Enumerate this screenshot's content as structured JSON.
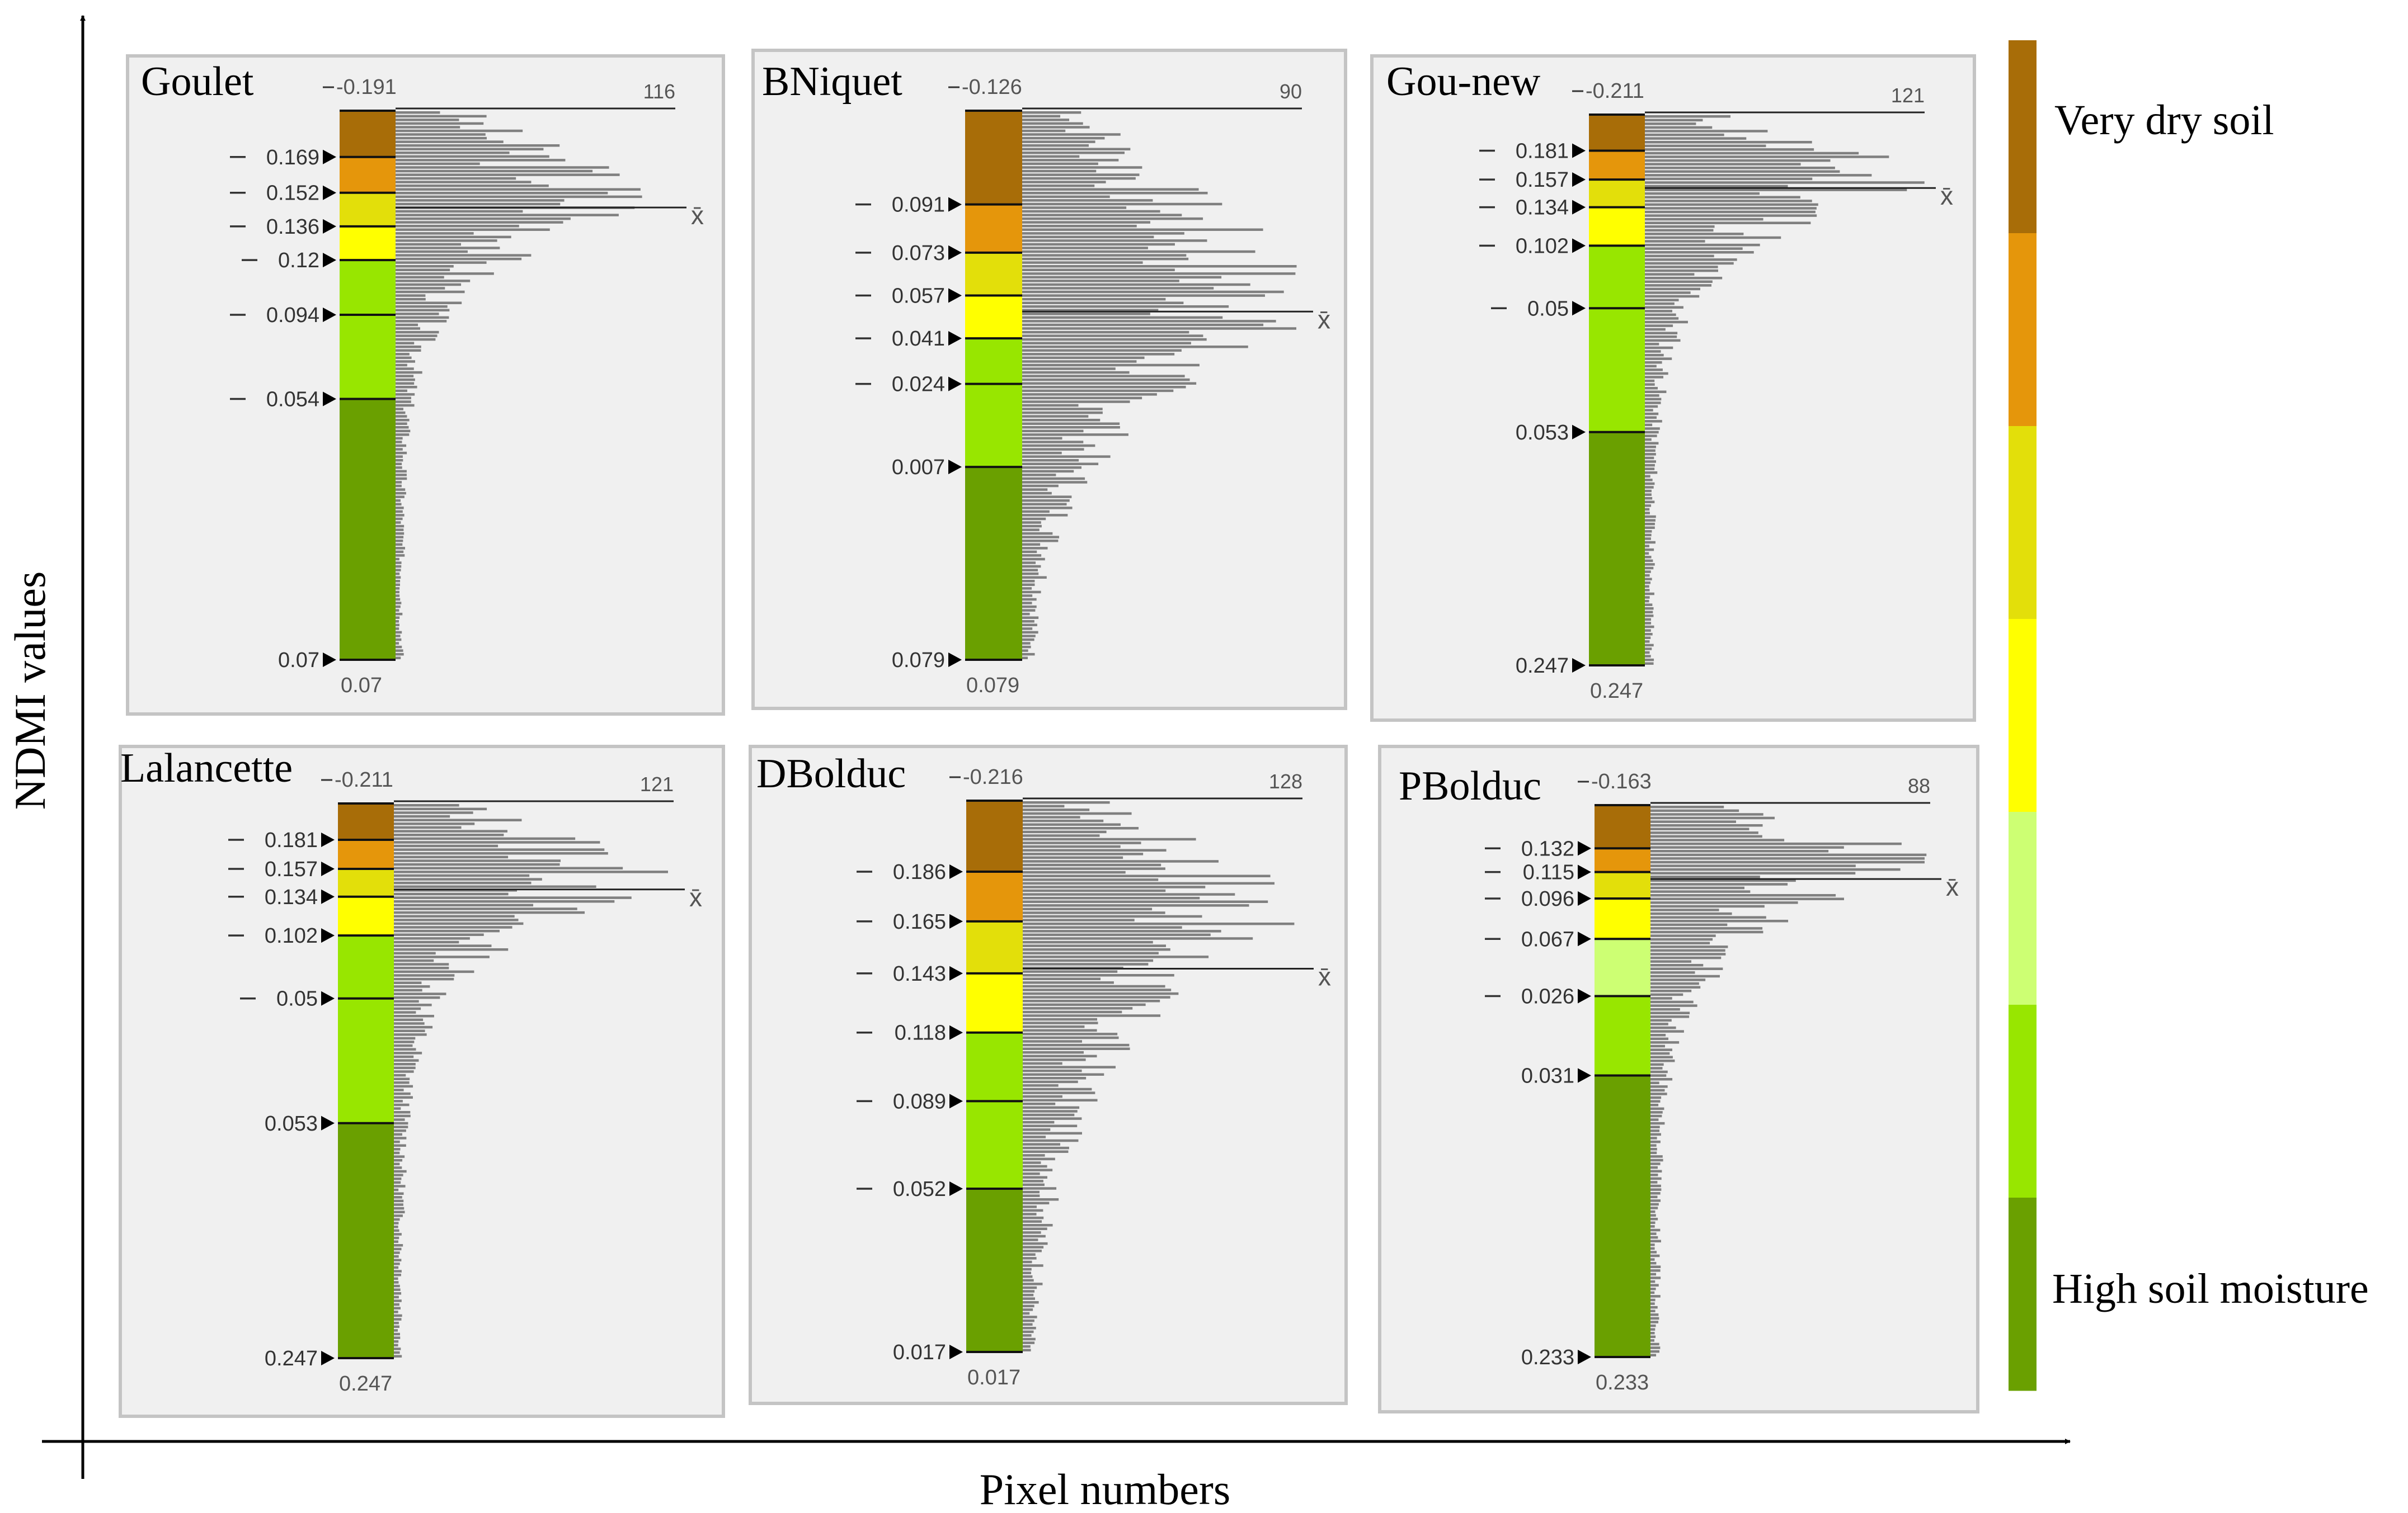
{
  "figure": {
    "ylabel": "NDMI values",
    "xlabel": "Pixel numbers",
    "legend_top_label": "Very dry soil",
    "legend_bottom_label": "High soil moisture",
    "mean_marker": "x̄"
  },
  "legend_colors": [
    "#a86d08",
    "#e5960b",
    "#e3df0a",
    "#ffff00",
    "#cdff73",
    "#98e600",
    "#6aa000"
  ],
  "chart_data": [
    {
      "type": "histogram",
      "title": "Goulet",
      "top_label": "-0.191",
      "bottom_label": "0.07",
      "bottom_value_label": "0.07",
      "max_count_label": "116",
      "break_labels": [
        "-0.169",
        "-0.152",
        "-0.136",
        "-0.12",
        "-0.094",
        "-0.054"
      ],
      "range": [
        -0.191,
        0.07
      ],
      "breaks": [
        -0.169,
        -0.152,
        -0.136,
        -0.12,
        -0.094,
        -0.054
      ],
      "colors": [
        "#a86d08",
        "#e5960b",
        "#e3df0a",
        "#ffff00",
        "#98e600",
        "#98e600",
        "#6aa000"
      ],
      "max_count": 116,
      "mean": -0.145,
      "peak": -0.143,
      "peak_count": 100,
      "shape": "skewed",
      "seed": 3
    },
    {
      "type": "histogram",
      "title": "BNiquet",
      "top_label": "-0.126",
      "bottom_label": "0.079",
      "bottom_value_label": "0.079",
      "max_count_label": "90",
      "break_labels": [
        "-0.091",
        "-0.073",
        "-0.057",
        "-0.041",
        "-0.024",
        "0.007"
      ],
      "range": [
        -0.126,
        0.079
      ],
      "breaks": [
        -0.091,
        -0.073,
        -0.057,
        -0.041,
        -0.024,
        0.007
      ],
      "colors": [
        "#a86d08",
        "#e5960b",
        "#e3df0a",
        "#ffff00",
        "#98e600",
        "#98e600",
        "#6aa000"
      ],
      "max_count": 90,
      "mean": -0.051,
      "peak": -0.047,
      "peak_count": 85,
      "shape": "wide",
      "seed": 7
    },
    {
      "type": "histogram",
      "title": "Gou-new",
      "top_label": "-0.211",
      "bottom_label": "0.247",
      "bottom_value_label": "0.247",
      "max_count_label": "121",
      "break_labels": [
        "-0.181",
        "-0.157",
        "-0.134",
        "-0.102",
        "-0.05",
        "0.053"
      ],
      "range": [
        -0.211,
        0.247
      ],
      "breaks": [
        -0.181,
        -0.157,
        -0.134,
        -0.102,
        -0.05,
        0.053
      ],
      "colors": [
        "#a86d08",
        "#e5960b",
        "#e3df0a",
        "#ffff00",
        "#98e600",
        "#98e600",
        "#6aa000"
      ],
      "max_count": 121,
      "mean": -0.15,
      "peak": -0.15,
      "peak_count": 115,
      "shape": "skewed",
      "seed": 11
    },
    {
      "type": "histogram",
      "title": "Lalancette",
      "top_label": "-0.211",
      "bottom_label": "0.247",
      "bottom_value_label": "0.247",
      "max_count_label": "121",
      "break_labels": [
        "-0.181",
        "-0.157",
        "-0.134",
        "-0.102",
        "-0.05",
        "0.053"
      ],
      "range": [
        -0.211,
        0.247
      ],
      "breaks": [
        -0.181,
        -0.157,
        -0.134,
        -0.102,
        -0.05,
        0.053
      ],
      "colors": [
        "#a86d08",
        "#e5960b",
        "#e3df0a",
        "#ffff00",
        "#98e600",
        "#98e600",
        "#6aa000"
      ],
      "max_count": 121,
      "mean": -0.14,
      "peak": -0.145,
      "peak_count": 115,
      "shape": "skewed",
      "seed": 13
    },
    {
      "type": "histogram",
      "title": "DBolduc",
      "top_label": "-0.216",
      "bottom_label": "0.017",
      "bottom_value_label": "0.017",
      "max_count_label": "128",
      "break_labels": [
        "-0.186",
        "-0.165",
        "-0.143",
        "-0.118",
        "-0.089",
        "-0.052"
      ],
      "range": [
        -0.216,
        0.017
      ],
      "breaks": [
        -0.186,
        -0.165,
        -0.143,
        -0.118,
        -0.089,
        -0.052
      ],
      "colors": [
        "#a86d08",
        "#e5960b",
        "#e3df0a",
        "#ffff00",
        "#98e600",
        "#98e600",
        "#6aa000"
      ],
      "max_count": 128,
      "mean": -0.145,
      "peak": -0.17,
      "peak_count": 115,
      "shape": "wide",
      "seed": 17
    },
    {
      "type": "histogram",
      "title": "PBolduc",
      "top_label": "-0.163",
      "bottom_label": "0.233",
      "bottom_value_label": "0.233",
      "max_count_label": "88",
      "break_labels": [
        "-0.132",
        "-0.115",
        "-0.096",
        "-0.067",
        "-0.026",
        "0.031"
      ],
      "range": [
        -0.163,
        0.233
      ],
      "breaks": [
        -0.132,
        -0.115,
        -0.096,
        -0.067,
        -0.026,
        0.031
      ],
      "colors": [
        "#a86d08",
        "#e5960b",
        "#e3df0a",
        "#ffff00",
        "#cdff73",
        "#98e600",
        "#6aa000"
      ],
      "max_count": 88,
      "mean": -0.11,
      "peak": -0.115,
      "peak_count": 84,
      "shape": "skewed",
      "seed": 19
    }
  ]
}
